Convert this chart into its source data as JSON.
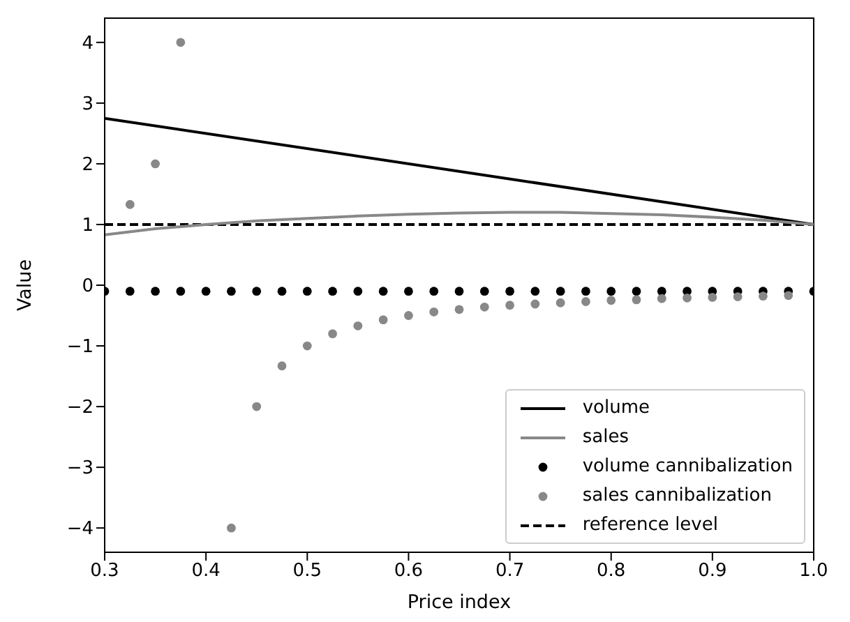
{
  "chart_data": {
    "type": "line",
    "xlabel": "Price index",
    "ylabel": "Value",
    "xlim": [
      0.3,
      1.0
    ],
    "xticks": [
      0.3,
      0.4,
      0.5,
      0.6,
      0.7,
      0.8,
      0.9,
      {
        "value": 1.0,
        "label": "1.0"
      }
    ],
    "ylim": [
      -4.4,
      4.4
    ],
    "yticks": [
      -4,
      -3,
      -2,
      -1,
      0,
      1,
      2,
      3,
      4
    ],
    "legend": "bottom right",
    "series": [
      {
        "name": "volume",
        "color": "#000000",
        "marker": "none",
        "line_style": "solid",
        "x": [
          0.3,
          1.0
        ],
        "values": [
          2.75,
          1.0
        ]
      },
      {
        "name": "sales",
        "color": "#888888",
        "marker": "none",
        "line_style": "solid",
        "x": [
          0.3,
          0.35,
          0.4,
          0.45,
          0.5,
          0.55,
          0.6,
          0.65,
          0.7,
          0.75,
          0.8,
          0.85,
          0.9,
          0.95,
          1.0
        ],
        "values": [
          0.83,
          0.93,
          1.0,
          1.06,
          1.1,
          1.14,
          1.17,
          1.19,
          1.2,
          1.2,
          1.18,
          1.16,
          1.12,
          1.07,
          1.0
        ]
      },
      {
        "name": "volume cannibalization",
        "type": "scatter",
        "color": "#000000",
        "marker": "circle",
        "x": [
          0.3,
          0.325,
          0.35,
          0.375,
          0.4,
          0.425,
          0.45,
          0.475,
          0.5,
          0.525,
          0.55,
          0.575,
          0.6,
          0.625,
          0.65,
          0.675,
          0.7,
          0.725,
          0.75,
          0.775,
          0.8,
          0.825,
          0.85,
          0.875,
          0.9,
          0.925,
          0.95,
          0.975,
          1.0
        ],
        "values": [
          -0.1,
          -0.1,
          -0.1,
          -0.1,
          -0.1,
          -0.1,
          -0.1,
          -0.1,
          -0.1,
          -0.1,
          -0.1,
          -0.1,
          -0.1,
          -0.1,
          -0.1,
          -0.1,
          -0.1,
          -0.1,
          -0.1,
          -0.1,
          -0.1,
          -0.1,
          -0.1,
          -0.1,
          -0.1,
          -0.1,
          -0.1,
          -0.1,
          -0.1
        ]
      },
      {
        "name": "sales cannibalization",
        "type": "scatter",
        "color": "#888888",
        "marker": "circle",
        "x": [
          0.325,
          0.35,
          0.375,
          0.425,
          0.45,
          0.475,
          0.5,
          0.525,
          0.55,
          0.575,
          0.6,
          0.625,
          0.65,
          0.675,
          0.7,
          0.725,
          0.75,
          0.775,
          0.8,
          0.825,
          0.85,
          0.875,
          0.9,
          0.925,
          0.95,
          0.975
        ],
        "values": [
          1.33,
          2.0,
          4.0,
          -4.0,
          -2.0,
          -1.33,
          -1.0,
          -0.8,
          -0.67,
          -0.57,
          -0.5,
          -0.44,
          -0.4,
          -0.36,
          -0.33,
          -0.31,
          -0.29,
          -0.27,
          -0.25,
          -0.24,
          -0.22,
          -0.21,
          -0.2,
          -0.19,
          -0.18,
          -0.17
        ]
      }
    ],
    "ref_lines": [
      {
        "axis": "y",
        "value": 1.0,
        "label": "reference level",
        "color": "#000000",
        "line_style": "dashed"
      }
    ]
  }
}
